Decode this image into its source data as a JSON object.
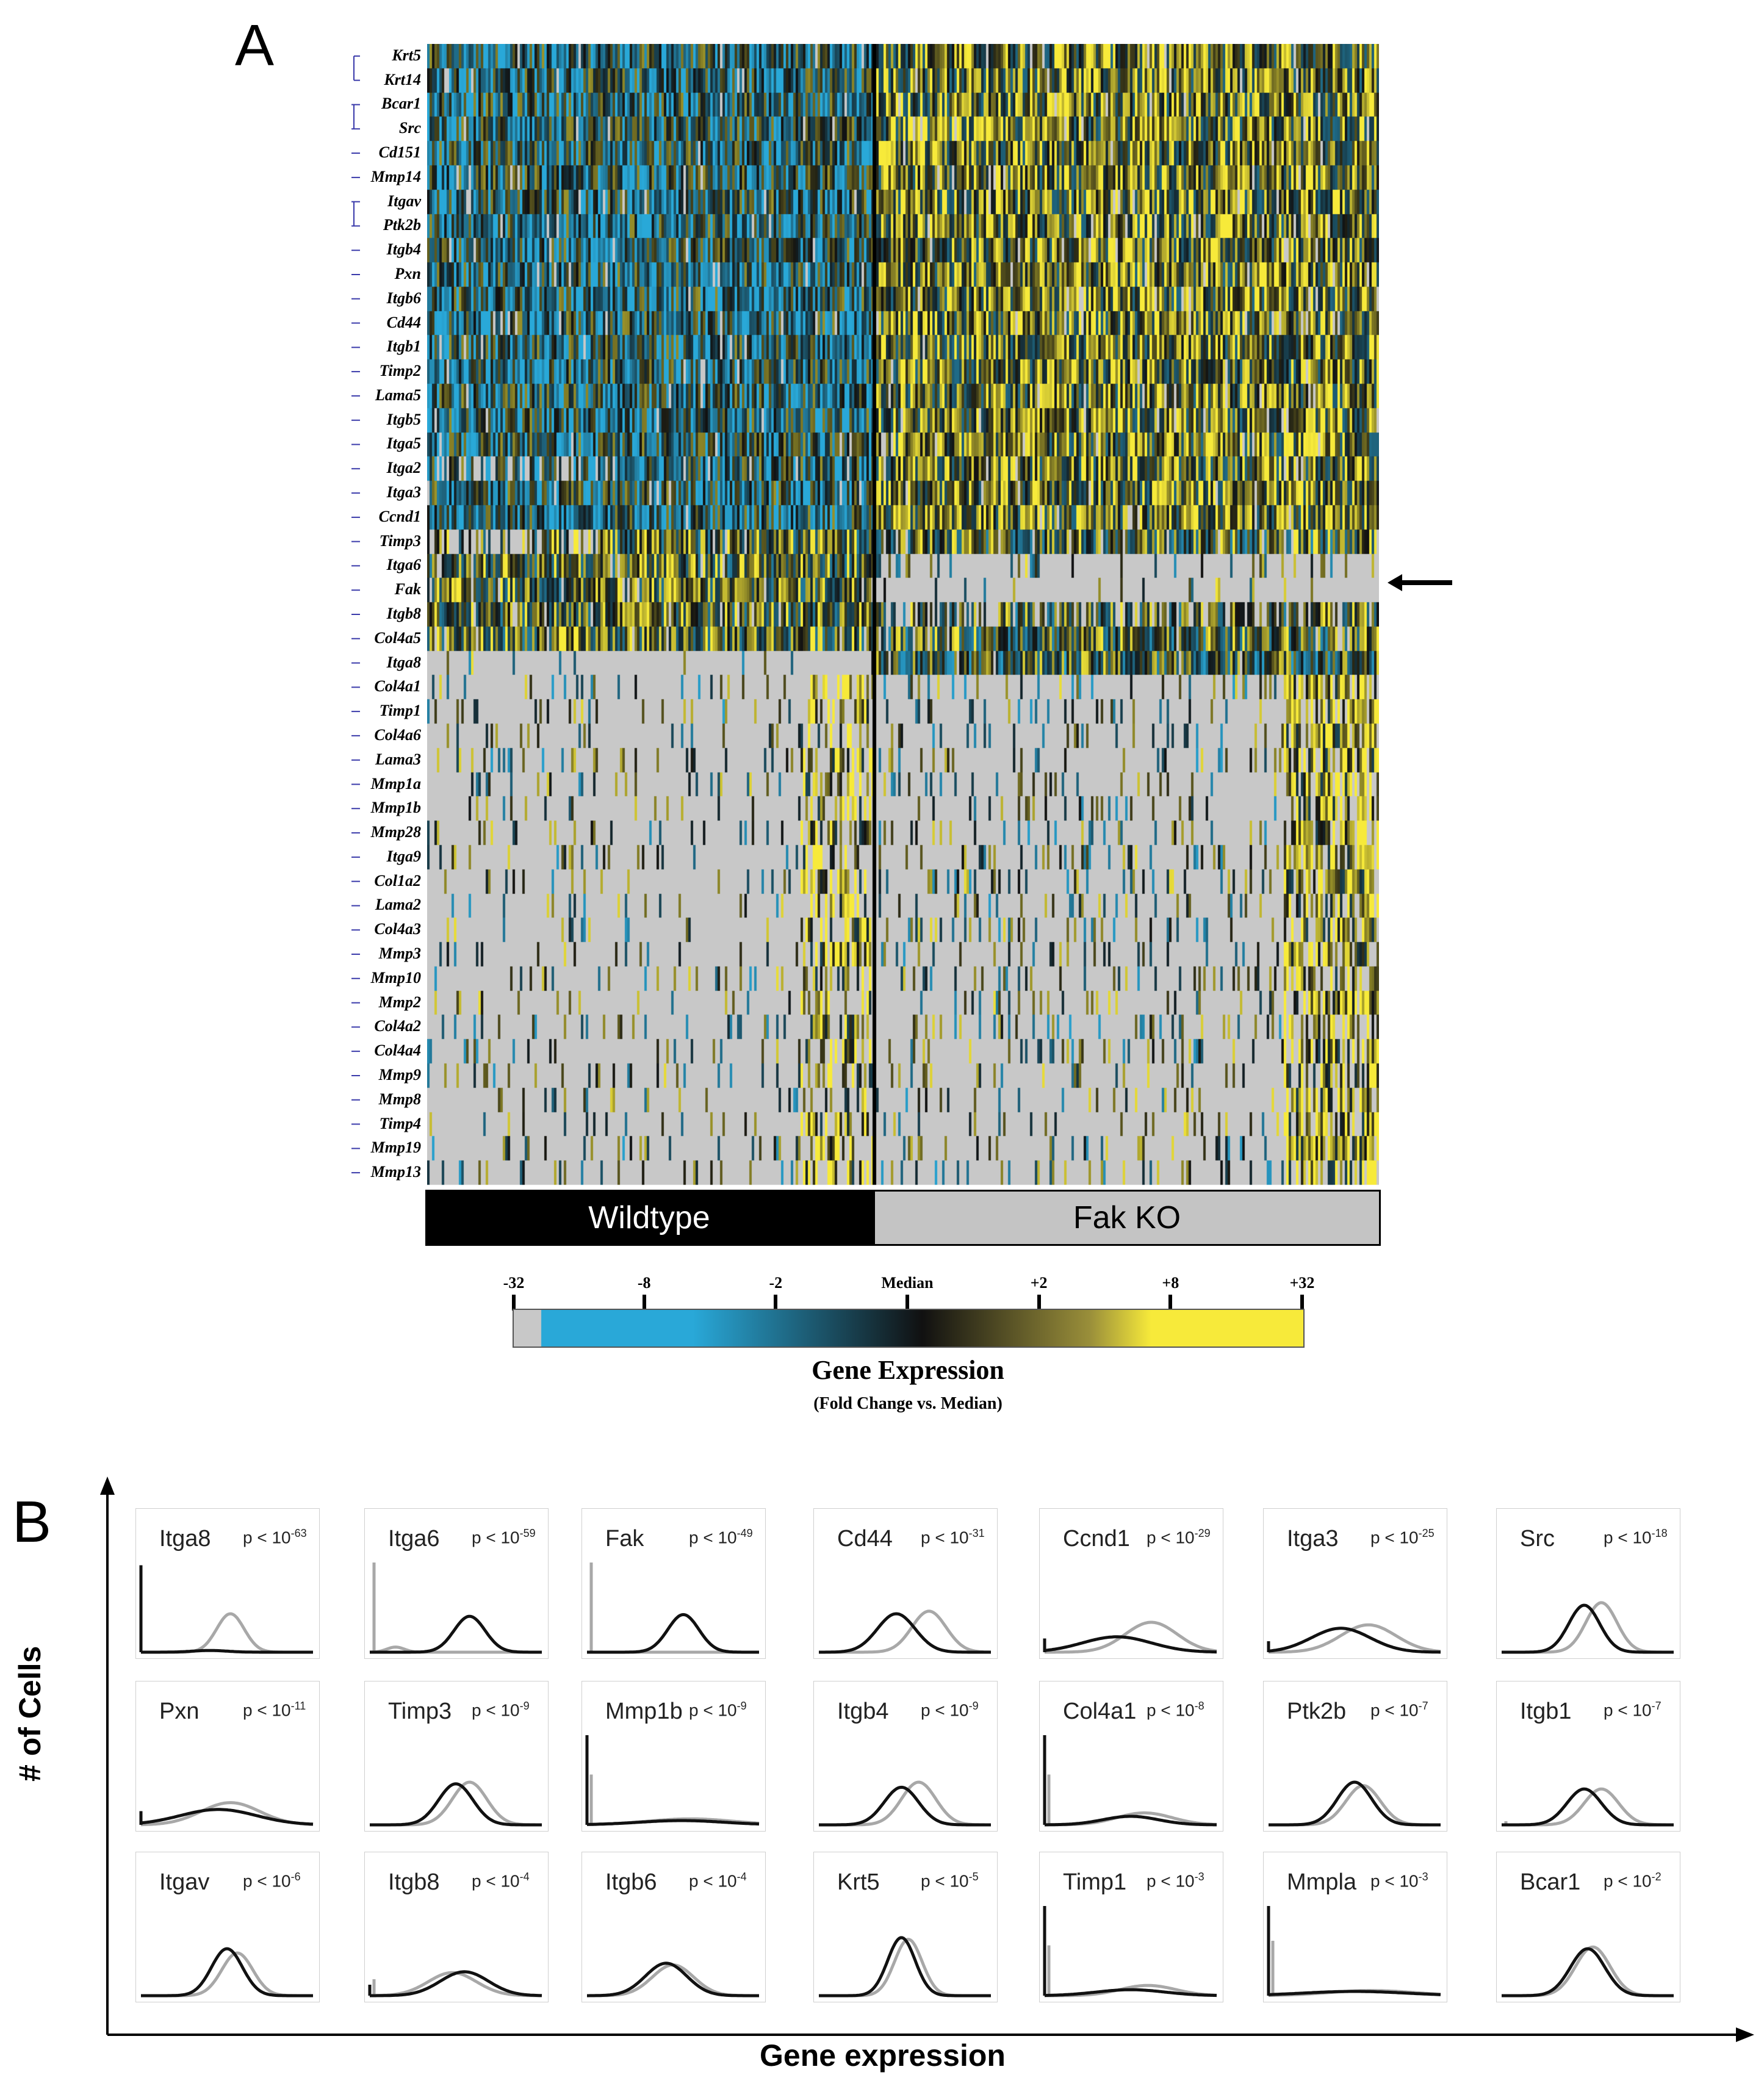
{
  "chart_data": [
    {
      "type": "heatmap",
      "panel_label": "A",
      "rows": [
        "Krt5",
        "Krt14",
        "Bcar1",
        "Src",
        "Cd151",
        "Mmp14",
        "Itgav",
        "Ptk2b",
        "Itgb4",
        "Pxn",
        "Itgb6",
        "Cd44",
        "Itgb1",
        "Timp2",
        "Lama5",
        "Itgb5",
        "Itga5",
        "Itga2",
        "Itga3",
        "Ccnd1",
        "Timp3",
        "Itga6",
        "Fak",
        "Itgb8",
        "Col4a5",
        "Itga8",
        "Col4a1",
        "Timp1",
        "Col4a6",
        "Lama3",
        "Mmp1a",
        "Mmp1b",
        "Mmp28",
        "Itga9",
        "Col1a2",
        "Lama2",
        "Col4a3",
        "Mmp3",
        "Mmp10",
        "Mmp2",
        "Col4a2",
        "Col4a4",
        "Mmp9",
        "Mmp8",
        "Timp4",
        "Mmp19",
        "Mmp13"
      ],
      "groups": [
        "Wildtype",
        "Fak KO"
      ],
      "colorbar": {
        "ticks": [
          "-32",
          "-8",
          "-2",
          "Median",
          "+2",
          "+8",
          "+32"
        ],
        "title": "Gene Expression",
        "subtitle": "(Fold Change vs. Median)",
        "colors": {
          "low": "#29a8d8",
          "mid": "#111111",
          "high": "#f7ea3a",
          "missing": "#c8c8c8"
        }
      },
      "highlighted_row": "Fak"
    },
    {
      "type": "line",
      "panel_label": "B",
      "xlabel": "Gene expression",
      "ylabel": "# of Cells",
      "series_colors": {
        "wildtype": "#111111",
        "fak_ko": "#a8a8a8"
      },
      "panels": [
        {
          "gene": "Itga8",
          "p": "p < 10",
          "exp": "-63",
          "wt": {
            "mu": 0.4,
            "sd": 0.1,
            "h": 0.02,
            "spike": 0.95
          },
          "ko": {
            "mu": 0.52,
            "sd": 0.08,
            "h": 0.45,
            "spike": 0
          }
        },
        {
          "gene": "Itga6",
          "p": "p < 10",
          "exp": "-59",
          "wt": {
            "mu": 0.58,
            "sd": 0.09,
            "h": 0.42,
            "spike": 0
          },
          "ko": {
            "mu": 0.15,
            "sd": 0.05,
            "h": 0.06,
            "spike": 0.98
          }
        },
        {
          "gene": "Fak",
          "p": "p < 10",
          "exp": "-49",
          "wt": {
            "mu": 0.56,
            "sd": 0.09,
            "h": 0.44,
            "spike": 0
          },
          "ko": {
            "mu": 0.55,
            "sd": 0.2,
            "h": 0.0,
            "spike": 0.98
          }
        },
        {
          "gene": "Cd44",
          "p": "p < 10",
          "exp": "-31",
          "wt": {
            "mu": 0.45,
            "sd": 0.11,
            "h": 0.45,
            "spike": 0
          },
          "ko": {
            "mu": 0.64,
            "sd": 0.1,
            "h": 0.48,
            "spike": 0
          }
        },
        {
          "gene": "Ccnd1",
          "p": "p < 10",
          "exp": "-29",
          "wt": {
            "mu": 0.42,
            "sd": 0.2,
            "h": 0.18,
            "spike": 0.15
          },
          "ko": {
            "mu": 0.62,
            "sd": 0.15,
            "h": 0.35,
            "spike": 0
          }
        },
        {
          "gene": "Itga3",
          "p": "p < 10",
          "exp": "-25",
          "wt": {
            "mu": 0.42,
            "sd": 0.17,
            "h": 0.28,
            "spike": 0.12
          },
          "ko": {
            "mu": 0.58,
            "sd": 0.16,
            "h": 0.32,
            "spike": 0
          }
        },
        {
          "gene": "Src",
          "p": "p < 10",
          "exp": "-18",
          "wt": {
            "mu": 0.48,
            "sd": 0.09,
            "h": 0.55,
            "spike": 0
          },
          "ko": {
            "mu": 0.58,
            "sd": 0.09,
            "h": 0.58,
            "spike": 0
          }
        },
        {
          "gene": "Pxn",
          "p": "p < 10",
          "exp": "-11",
          "wt": {
            "mu": 0.45,
            "sd": 0.22,
            "h": 0.18,
            "spike": 0.15
          },
          "ko": {
            "mu": 0.52,
            "sd": 0.17,
            "h": 0.26,
            "spike": 0
          }
        },
        {
          "gene": "Timp3",
          "p": "p < 10",
          "exp": "-9",
          "wt": {
            "mu": 0.5,
            "sd": 0.1,
            "h": 0.48,
            "spike": 0
          },
          "ko": {
            "mu": 0.58,
            "sd": 0.1,
            "h": 0.5,
            "spike": 0
          }
        },
        {
          "gene": "Mmp1b",
          "p": "p < 10",
          "exp": "-9",
          "wt": {
            "mu": 0.55,
            "sd": 0.25,
            "h": 0.05,
            "spike": 0.98
          },
          "ko": {
            "mu": 0.6,
            "sd": 0.25,
            "h": 0.07,
            "spike": 0.55
          }
        },
        {
          "gene": "Itgb4",
          "p": "p < 10",
          "exp": "-9",
          "wt": {
            "mu": 0.48,
            "sd": 0.1,
            "h": 0.44,
            "spike": 0
          },
          "ko": {
            "mu": 0.58,
            "sd": 0.1,
            "h": 0.5,
            "spike": 0
          }
        },
        {
          "gene": "Col4a1",
          "p": "p < 10",
          "exp": "-8",
          "wt": {
            "mu": 0.5,
            "sd": 0.16,
            "h": 0.1,
            "spike": 0.98
          },
          "ko": {
            "mu": 0.58,
            "sd": 0.16,
            "h": 0.14,
            "spike": 0.55
          }
        },
        {
          "gene": "Ptk2b",
          "p": "p < 10",
          "exp": "-7",
          "wt": {
            "mu": 0.5,
            "sd": 0.1,
            "h": 0.5,
            "spike": 0
          },
          "ko": {
            "mu": 0.55,
            "sd": 0.1,
            "h": 0.46,
            "spike": 0
          }
        },
        {
          "gene": "Itgb1",
          "p": "p < 10",
          "exp": "-7",
          "wt": {
            "mu": 0.48,
            "sd": 0.1,
            "h": 0.42,
            "spike": 0
          },
          "ko": {
            "mu": 0.58,
            "sd": 0.1,
            "h": 0.42,
            "spike": 0.04
          }
        },
        {
          "gene": "Itgav",
          "p": "p < 10",
          "exp": "-6",
          "wt": {
            "mu": 0.5,
            "sd": 0.09,
            "h": 0.55,
            "spike": 0
          },
          "ko": {
            "mu": 0.56,
            "sd": 0.09,
            "h": 0.5,
            "spike": 0
          }
        },
        {
          "gene": "Itgb8",
          "p": "p < 10",
          "exp": "-4",
          "wt": {
            "mu": 0.55,
            "sd": 0.14,
            "h": 0.28,
            "spike": 0.12
          },
          "ko": {
            "mu": 0.48,
            "sd": 0.14,
            "h": 0.27,
            "spike": 0.18
          }
        },
        {
          "gene": "Itgb6",
          "p": "p < 10",
          "exp": "-4",
          "wt": {
            "mu": 0.46,
            "sd": 0.12,
            "h": 0.38,
            "spike": 0
          },
          "ko": {
            "mu": 0.5,
            "sd": 0.12,
            "h": 0.36,
            "spike": 0
          }
        },
        {
          "gene": "Krt5",
          "p": "p < 10",
          "exp": "-5",
          "wt": {
            "mu": 0.48,
            "sd": 0.08,
            "h": 0.68,
            "spike": 0
          },
          "ko": {
            "mu": 0.52,
            "sd": 0.08,
            "h": 0.66,
            "spike": 0
          }
        },
        {
          "gene": "Timp1",
          "p": "p < 10",
          "exp": "-3",
          "wt": {
            "mu": 0.5,
            "sd": 0.2,
            "h": 0.07,
            "spike": 0.98
          },
          "ko": {
            "mu": 0.6,
            "sd": 0.16,
            "h": 0.12,
            "spike": 0.55
          }
        },
        {
          "gene": "Mmpla",
          "p": "p < 10",
          "exp": "-3",
          "wt": {
            "mu": 0.5,
            "sd": 0.3,
            "h": 0.05,
            "spike": 0.98
          },
          "ko": {
            "mu": 0.6,
            "sd": 0.25,
            "h": 0.06,
            "spike": 0.6
          }
        },
        {
          "gene": "Bcar1",
          "p": "p < 10",
          "exp": "-2",
          "wt": {
            "mu": 0.5,
            "sd": 0.1,
            "h": 0.55,
            "spike": 0
          },
          "ko": {
            "mu": 0.53,
            "sd": 0.1,
            "h": 0.57,
            "spike": 0
          }
        }
      ]
    }
  ]
}
